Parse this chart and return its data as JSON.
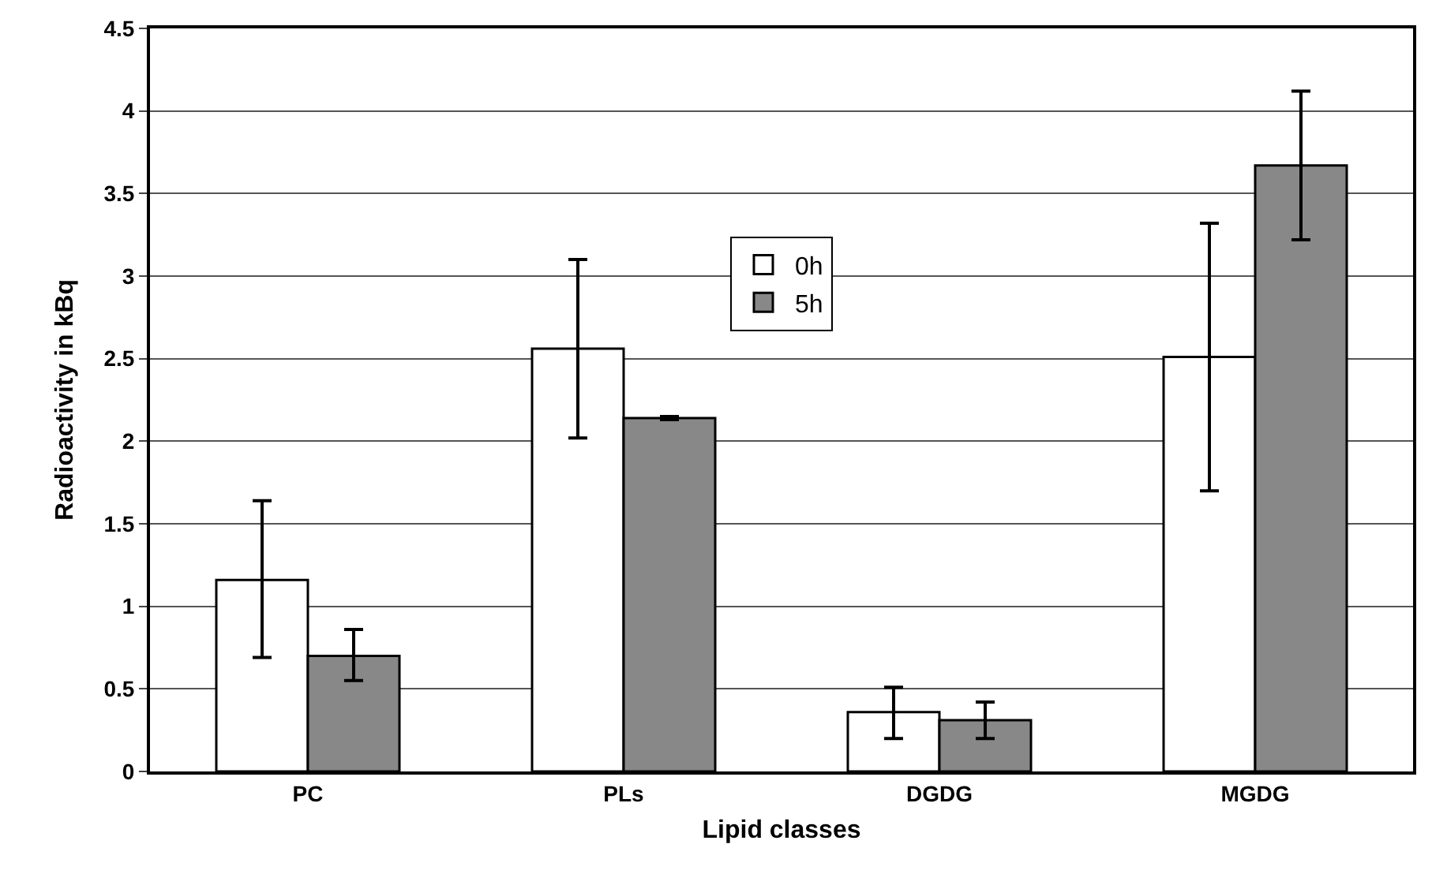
{
  "chart_data": {
    "type": "bar",
    "xlabel": "Lipid classes",
    "ylabel": "Radioactivity in kBq",
    "categories": [
      "PC",
      "PLs",
      "DGDG",
      "MGDG"
    ],
    "series": [
      {
        "name": "0h",
        "color": "#ffffff",
        "values": [
          1.16,
          2.56,
          0.36,
          2.51
        ],
        "errors": [
          [
            0.69,
            1.64
          ],
          [
            2.02,
            3.1
          ],
          [
            0.2,
            0.51
          ],
          [
            1.7,
            3.32
          ]
        ]
      },
      {
        "name": "5h",
        "color": "#888888",
        "values": [
          0.7,
          2.14,
          0.31,
          3.67
        ],
        "errors": [
          [
            0.55,
            0.86
          ],
          [
            2.13,
            2.15
          ],
          [
            0.2,
            0.42
          ],
          [
            3.22,
            4.12
          ]
        ]
      }
    ],
    "ylim": [
      0,
      4.5
    ],
    "yticks": [
      0,
      0.5,
      1,
      1.5,
      2,
      2.5,
      3,
      3.5,
      4,
      4.5
    ],
    "grid": "y",
    "legend": "top"
  }
}
